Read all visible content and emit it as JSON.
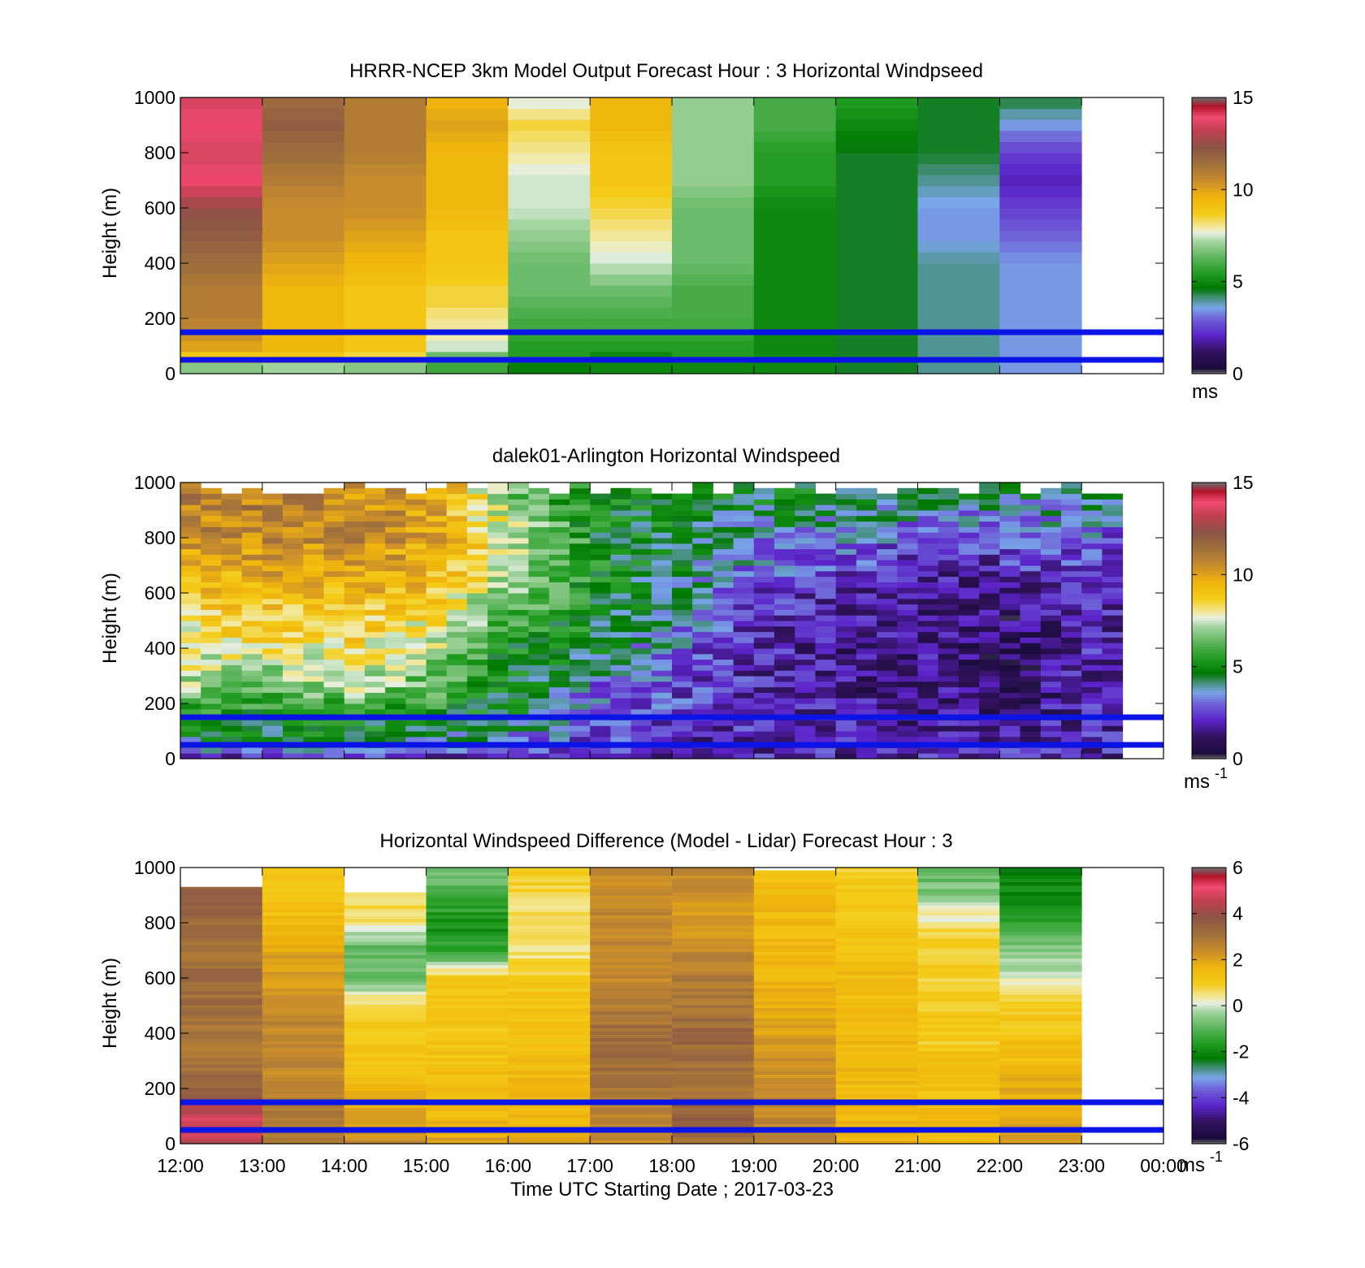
{
  "panels": [
    {
      "id": "model",
      "title": "HRRR-NCEP 3km Model Output   Forecast Hour : 3 Horizontal Windpseed",
      "ylabel": "Height (m)",
      "unit": "ms",
      "unit_sup": "",
      "show_xticklabels": false
    },
    {
      "id": "lidar",
      "title": "dalek01-Arlington  Horizontal Windspeed",
      "ylabel": "Height (m)",
      "unit": "ms",
      "unit_sup": "-1",
      "show_xticklabels": false
    },
    {
      "id": "diff",
      "title": "Horizontal Windspeed Difference (Model - Lidar) Forecast Hour : 3",
      "ylabel": "Height (m)",
      "unit": "ms",
      "unit_sup": "-1",
      "show_xticklabels": true
    }
  ],
  "xlabel": "Time UTC  Starting Date ; 2017-03-23",
  "chart_data": [
    {
      "type": "heatmap",
      "title": "HRRR-NCEP 3km Model Output   Forecast Hour : 3 Horizontal Windpseed",
      "ylabel": "Height (m)",
      "xlim": [
        "12:00",
        "00:00"
      ],
      "ylim": [
        0,
        1000
      ],
      "yticks": [
        0,
        200,
        400,
        600,
        800,
        1000
      ],
      "xticks": [
        "12:00",
        "13:00",
        "14:00",
        "15:00",
        "16:00",
        "17:00",
        "18:00",
        "19:00",
        "20:00",
        "21:00",
        "22:00",
        "23:00",
        "00:00"
      ],
      "colorbar": {
        "min": 0,
        "max": 15,
        "ticks": [
          0,
          5,
          10,
          15
        ],
        "unit": "ms"
      },
      "reference_lines_m": [
        50,
        150
      ],
      "columns": [
        {
          "time": "12:00",
          "heights": [
            0,
            30,
            60,
            100,
            200,
            300,
            400,
            500,
            600,
            700,
            800,
            900,
            1000
          ],
          "values": [
            5.5,
            7.5,
            9,
            10,
            11,
            11,
            11.5,
            12,
            12.5,
            14,
            13.5,
            14,
            13.5
          ]
        },
        {
          "time": "13:00",
          "heights": [
            0,
            30,
            60,
            100,
            200,
            300,
            400,
            500,
            600,
            700,
            800,
            900,
            1000
          ],
          "values": [
            5.5,
            8,
            9,
            9.5,
            9.5,
            9.5,
            10,
            10.5,
            10.5,
            11,
            11.5,
            12,
            11.5
          ]
        },
        {
          "time": "14:00",
          "heights": [
            0,
            30,
            60,
            100,
            200,
            300,
            400,
            500,
            600,
            700,
            800,
            900,
            1000
          ],
          "values": [
            5.5,
            7.5,
            8.5,
            9,
            9,
            9,
            9.5,
            10,
            10.5,
            10.5,
            11,
            11,
            11
          ]
        },
        {
          "time": "15:00",
          "heights": [
            0,
            30,
            60,
            100,
            150,
            200,
            250,
            300,
            400,
            500,
            600,
            700,
            800,
            900,
            1000
          ],
          "values": [
            5.5,
            6,
            6.5,
            7.5,
            8,
            8,
            8.5,
            8.5,
            9,
            9,
            9.5,
            9.5,
            9.5,
            10,
            9.5
          ]
        },
        {
          "time": "16:00",
          "heights": [
            0,
            30,
            60,
            100,
            200,
            300,
            400,
            500,
            600,
            700,
            800,
            900,
            1000
          ],
          "values": [
            4.5,
            5,
            5.5,
            5.5,
            6,
            6.5,
            6.5,
            7,
            7.5,
            7.5,
            8,
            8.5,
            7.5
          ]
        },
        {
          "time": "17:00",
          "heights": [
            0,
            30,
            60,
            100,
            200,
            300,
            400,
            500,
            600,
            700,
            800,
            900,
            1000
          ],
          "values": [
            5,
            5,
            5,
            5.5,
            6,
            6.5,
            7.5,
            8,
            8.5,
            9,
            9,
            9.5,
            9.5
          ]
        },
        {
          "time": "18:00",
          "heights": [
            0,
            30,
            60,
            100,
            200,
            300,
            400,
            500,
            600,
            700,
            800,
            900,
            1000
          ],
          "values": [
            5,
            5,
            5.5,
            5.5,
            6,
            6,
            6.5,
            6.5,
            6.5,
            7,
            7,
            7,
            7
          ]
        },
        {
          "time": "19:00",
          "heights": [
            0,
            30,
            60,
            100,
            200,
            300,
            400,
            500,
            600,
            700,
            800,
            900,
            1000
          ],
          "values": [
            5,
            5,
            5,
            5,
            5,
            5,
            5,
            5,
            5,
            5.5,
            5.5,
            6,
            6
          ]
        },
        {
          "time": "20:00",
          "heights": [
            0,
            30,
            60,
            100,
            200,
            300,
            400,
            500,
            600,
            700,
            800,
            900,
            1000
          ],
          "values": [
            4.5,
            4.5,
            4.5,
            4.5,
            4.5,
            4.5,
            4.5,
            4.5,
            4.5,
            4.5,
            4.5,
            5,
            5.5
          ]
        },
        {
          "time": "21:00",
          "heights": [
            0,
            30,
            60,
            100,
            200,
            300,
            400,
            500,
            600,
            700,
            800,
            900,
            1000
          ],
          "values": [
            4,
            4,
            4,
            4,
            4,
            4,
            4,
            3.5,
            3.5,
            4,
            4.5,
            4.5,
            4.5
          ]
        },
        {
          "time": "22:00",
          "heights": [
            0,
            30,
            60,
            100,
            200,
            300,
            400,
            500,
            600,
            700,
            800,
            900,
            1000
          ],
          "values": [
            3.5,
            3.5,
            3.5,
            3.5,
            3.5,
            3.5,
            3.5,
            3,
            2.5,
            2,
            2.5,
            3.5,
            4.5
          ]
        }
      ]
    },
    {
      "type": "heatmap",
      "title": "dalek01-Arlington  Horizontal Windspeed",
      "ylabel": "Height (m)",
      "xlim": [
        "12:00",
        "00:00"
      ],
      "ylim": [
        0,
        1000
      ],
      "yticks": [
        0,
        200,
        400,
        600,
        800,
        1000
      ],
      "colorbar": {
        "min": 0,
        "max": 15,
        "ticks": [
          0,
          5,
          10,
          15
        ],
        "unit": "ms-1"
      },
      "reference_lines_m": [
        50,
        150
      ],
      "time_step_minutes": 15,
      "profiles": [
        {
          "time": "12:00",
          "heights": [
            0,
            50,
            150,
            250,
            400,
            600,
            800,
            1000
          ],
          "values": [
            2,
            4,
            5,
            7,
            8,
            9,
            10.5,
            11
          ]
        },
        {
          "time": "13:00",
          "heights": [
            0,
            50,
            150,
            250,
            400,
            600,
            800,
            1000
          ],
          "values": [
            2,
            4.5,
            5,
            6.5,
            8,
            9.5,
            10.5,
            11
          ]
        },
        {
          "time": "14:00",
          "heights": [
            0,
            50,
            150,
            250,
            400,
            600,
            800,
            1000
          ],
          "values": [
            2,
            4.5,
            5,
            7,
            8.5,
            9.5,
            10.5,
            10.5
          ]
        },
        {
          "time": "15:00",
          "heights": [
            0,
            50,
            150,
            250,
            400,
            600,
            800,
            1000
          ],
          "values": [
            2,
            4,
            5,
            6,
            7,
            9,
            10,
            10
          ]
        },
        {
          "time": "16:00",
          "heights": [
            0,
            50,
            150,
            250,
            400,
            600,
            800,
            1000
          ],
          "values": [
            2,
            3,
            4.5,
            4.5,
            5,
            6.5,
            7.5,
            6
          ]
        },
        {
          "time": "17:00",
          "heights": [
            0,
            50,
            150,
            250,
            400,
            600,
            800,
            1000
          ],
          "values": [
            2,
            2.5,
            3,
            3,
            4.5,
            5,
            5,
            5
          ]
        },
        {
          "time": "18:00",
          "heights": [
            0,
            50,
            150,
            250,
            400,
            600,
            800,
            1000
          ],
          "values": [
            2,
            2,
            2.5,
            2.5,
            3,
            4,
            4.5,
            5
          ]
        },
        {
          "time": "19:00",
          "heights": [
            0,
            50,
            150,
            250,
            400,
            600,
            800,
            1000
          ],
          "values": [
            2,
            2,
            2,
            2,
            2,
            2.5,
            3.5,
            5
          ]
        },
        {
          "time": "20:00",
          "heights": [
            0,
            50,
            150,
            250,
            400,
            600,
            800,
            1000
          ],
          "values": [
            2,
            2,
            2,
            1.5,
            1.5,
            2,
            3.5,
            5
          ]
        },
        {
          "time": "21:00",
          "heights": [
            0,
            50,
            150,
            250,
            400,
            600,
            800,
            1000
          ],
          "values": [
            2,
            2,
            1.5,
            1.5,
            1.5,
            1.5,
            2.5,
            4.5
          ]
        },
        {
          "time": "22:00",
          "heights": [
            0,
            50,
            150,
            250,
            400,
            600,
            800,
            1000
          ],
          "values": [
            2,
            2,
            1.5,
            1,
            1,
            1.5,
            3,
            4.5
          ]
        },
        {
          "time": "23:00",
          "heights": [
            0,
            50,
            150,
            250,
            400,
            600,
            800,
            1000
          ],
          "values": [
            2,
            2,
            2,
            2,
            2,
            2,
            3,
            4.5
          ]
        }
      ]
    },
    {
      "type": "heatmap",
      "title": "Horizontal Windspeed Difference (Model - Lidar) Forecast Hour : 3",
      "ylabel": "Height (m)",
      "xlabel": "Time UTC  Starting Date ; 2017-03-23",
      "xlim": [
        "12:00",
        "00:00"
      ],
      "ylim": [
        0,
        1000
      ],
      "yticks": [
        0,
        200,
        400,
        600,
        800,
        1000
      ],
      "xticks": [
        "12:00",
        "13:00",
        "14:00",
        "15:00",
        "16:00",
        "17:00",
        "18:00",
        "19:00",
        "20:00",
        "21:00",
        "22:00",
        "23:00",
        "00:00"
      ],
      "colorbar": {
        "min": -6,
        "max": 6,
        "ticks": [
          -6,
          -4,
          -2,
          0,
          2,
          4,
          6
        ],
        "unit": "ms-1"
      },
      "reference_lines_m": [
        50,
        150
      ],
      "columns": [
        {
          "time": "12:00",
          "top": 930,
          "heights": [
            0,
            100,
            200,
            300,
            400,
            500,
            600,
            700,
            800,
            930
          ],
          "values": [
            4.5,
            4.8,
            3.5,
            3,
            3,
            3.2,
            3.3,
            3,
            3.3,
            3.6
          ]
        },
        {
          "time": "13:00",
          "top": 1000,
          "heights": [
            0,
            100,
            200,
            300,
            400,
            500,
            600,
            700,
            800,
            900,
            1000
          ],
          "values": [
            3,
            3,
            2.5,
            2.5,
            2.5,
            2.5,
            2,
            2,
            1.5,
            1.2,
            1
          ]
        },
        {
          "time": "14:00",
          "top": 910,
          "heights": [
            0,
            100,
            200,
            300,
            400,
            500,
            600,
            700,
            800,
            910
          ],
          "values": [
            2.5,
            2,
            1.5,
            1.3,
            1,
            0.8,
            -0.8,
            -1,
            0.5,
            0.8
          ]
        },
        {
          "time": "15:00",
          "top": 1000,
          "heights": [
            0,
            100,
            200,
            300,
            400,
            500,
            600,
            700,
            800,
            900,
            1000
          ],
          "values": [
            2,
            1.5,
            1.5,
            1.3,
            1.2,
            1.2,
            1,
            -1.5,
            -1.8,
            -1.2,
            -0.5
          ]
        },
        {
          "time": "16:00",
          "top": 1000,
          "heights": [
            0,
            100,
            200,
            300,
            400,
            500,
            600,
            700,
            800,
            900,
            1000
          ],
          "values": [
            2,
            1.5,
            1.5,
            1.5,
            1.3,
            1.2,
            1,
            0.5,
            0.5,
            0.8,
            1
          ]
        },
        {
          "time": "17:00",
          "top": 1000,
          "heights": [
            0,
            100,
            200,
            300,
            400,
            500,
            600,
            700,
            800,
            900,
            1000
          ],
          "values": [
            2.5,
            2.5,
            3,
            3.2,
            3.2,
            2.8,
            2.5,
            2.5,
            2.5,
            2.5,
            2.5
          ]
        },
        {
          "time": "18:00",
          "top": 1000,
          "heights": [
            0,
            100,
            200,
            300,
            400,
            500,
            600,
            700,
            800,
            900,
            1000
          ],
          "values": [
            3.2,
            3.5,
            3,
            3.2,
            3.3,
            3,
            2.8,
            2.5,
            2.2,
            2.3,
            2.5
          ]
        },
        {
          "time": "19:00",
          "top": 990,
          "heights": [
            0,
            100,
            200,
            300,
            400,
            500,
            600,
            700,
            800,
            900,
            990
          ],
          "values": [
            2.8,
            2.5,
            2.5,
            2.2,
            2,
            1.8,
            1.6,
            1.5,
            1.5,
            1.5,
            1.2
          ]
        },
        {
          "time": "20:00",
          "top": 1000,
          "heights": [
            0,
            100,
            200,
            300,
            400,
            500,
            600,
            700,
            800,
            900,
            1000
          ],
          "values": [
            1.8,
            1.5,
            1.5,
            1.5,
            1.5,
            1.5,
            1.5,
            1.3,
            1.2,
            1,
            0.8
          ]
        },
        {
          "time": "21:00",
          "top": 1000,
          "heights": [
            0,
            100,
            200,
            300,
            400,
            500,
            600,
            700,
            800,
            900,
            1000
          ],
          "values": [
            1.5,
            1.5,
            1.3,
            1.2,
            1,
            1,
            0.8,
            1,
            0.5,
            -0.5,
            -1
          ]
        },
        {
          "time": "22:00",
          "top": 1000,
          "heights": [
            0,
            100,
            200,
            300,
            400,
            500,
            600,
            700,
            800,
            900,
            1000
          ],
          "values": [
            2,
            2,
            1.8,
            1.5,
            1.2,
            1,
            0,
            -0.5,
            -1.5,
            -2,
            -2.2
          ]
        }
      ]
    }
  ]
}
